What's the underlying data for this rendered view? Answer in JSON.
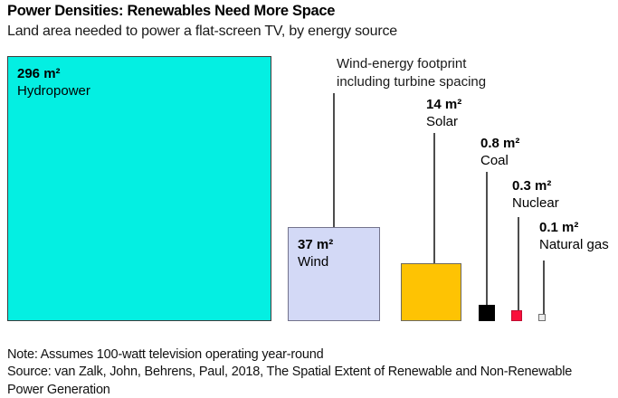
{
  "header": {
    "title": "Power Densities: Renewables Need More Space",
    "subtitle": "Land area needed to power a flat-screen TV, by energy source"
  },
  "chart_data": {
    "type": "area",
    "subtype": "proportional-area-squares",
    "title": "Power Densities: Renewables Need More Space",
    "subtitle": "Land area needed to power a flat-screen TV, by energy source",
    "unit": "m²",
    "categories": [
      "Hydropower",
      "Wind",
      "Solar",
      "Coal",
      "Nuclear",
      "Natural gas"
    ],
    "values": [
      296,
      37,
      14,
      0.8,
      0.3,
      0.1
    ],
    "annotation": "Wind-energy footprint including turbine spacing",
    "legend": "none",
    "layout_hint": "squares sized by area, bottom-aligned; large squares labeled inside, small squares labeled above via leader lines",
    "items": [
      {
        "name": "Hydropower",
        "value": 296,
        "value_label": "296 m²",
        "color": "#04efe2",
        "border": "#3d3d3d",
        "label_position": "inside"
      },
      {
        "name": "Wind",
        "value": 37,
        "value_label": "37 m²",
        "color": "#d3d9f6",
        "border": "#73738c",
        "label_position": "inside"
      },
      {
        "name": "Solar",
        "value": 14,
        "value_label": "14 m²",
        "color": "#fec303",
        "border": "#6e6a5e",
        "label_position": "outside"
      },
      {
        "name": "Coal",
        "value": 0.8,
        "value_label": "0.8 m²",
        "color": "#000000",
        "border": "#000000",
        "label_position": "outside"
      },
      {
        "name": "Nuclear",
        "value": 0.3,
        "value_label": "0.3 m²",
        "color": "#f90f3b",
        "border": "#c00d31",
        "label_position": "outside"
      },
      {
        "name": "Natural gas",
        "value": 0.1,
        "value_label": "0.1 m²",
        "color": "#ececec",
        "border": "#707070",
        "label_position": "outside"
      }
    ]
  },
  "footer": {
    "note": "Note: Assumes 100-watt television operating year-round",
    "source": "Source: van Zalk, John, Behrens, Paul, 2018, The Spatial Extent of Renewable and Non-Renewable Power Generation"
  }
}
